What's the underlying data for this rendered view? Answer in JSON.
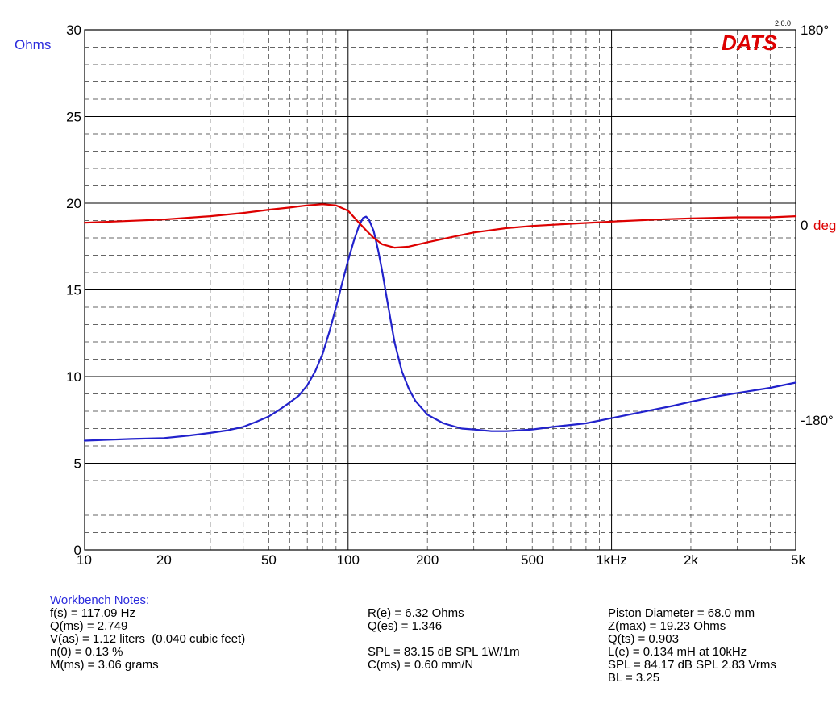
{
  "chart_data": {
    "type": "line",
    "logo": "DATS",
    "version": "2.0.0",
    "x_scale": "log",
    "xlim": [
      10,
      5000
    ],
    "x_tick_labels": [
      {
        "x": 10,
        "label": "10"
      },
      {
        "x": 20,
        "label": "20"
      },
      {
        "x": 50,
        "label": "50"
      },
      {
        "x": 100,
        "label": "100"
      },
      {
        "x": 200,
        "label": "200"
      },
      {
        "x": 500,
        "label": "500"
      },
      {
        "x": 1000,
        "label": "1kHz"
      },
      {
        "x": 2000,
        "label": "2k"
      },
      {
        "x": 5000,
        "label": "5k"
      }
    ],
    "left_axis": {
      "label": "Ohms",
      "ylim": [
        0,
        30
      ],
      "ticks": [
        0,
        5,
        10,
        15,
        20,
        25,
        30
      ]
    },
    "right_axis": {
      "unit_label": "deg",
      "ylim": [
        -300,
        180
      ],
      "ticks": [
        {
          "value": 180,
          "label": "180°"
        },
        {
          "value": 0,
          "label": "0"
        },
        {
          "value": -180,
          "label": "-180°"
        }
      ]
    },
    "grid": true,
    "colors": {
      "impedance": "#2222cc",
      "phase": "#dd0000",
      "logo": "#dd0000",
      "axis_label": "#2b2bdd"
    },
    "series": [
      {
        "key": "impedance",
        "axis": "left",
        "points": [
          [
            10,
            6.3
          ],
          [
            15,
            6.4
          ],
          [
            20,
            6.45
          ],
          [
            25,
            6.6
          ],
          [
            30,
            6.75
          ],
          [
            35,
            6.9
          ],
          [
            40,
            7.1
          ],
          [
            45,
            7.4
          ],
          [
            50,
            7.7
          ],
          [
            55,
            8.1
          ],
          [
            60,
            8.5
          ],
          [
            65,
            8.9
          ],
          [
            70,
            9.5
          ],
          [
            75,
            10.3
          ],
          [
            80,
            11.3
          ],
          [
            85,
            12.6
          ],
          [
            90,
            14.0
          ],
          [
            95,
            15.4
          ],
          [
            100,
            16.7
          ],
          [
            105,
            17.8
          ],
          [
            110,
            18.7
          ],
          [
            114,
            19.15
          ],
          [
            117,
            19.23
          ],
          [
            120,
            19.05
          ],
          [
            125,
            18.4
          ],
          [
            130,
            17.3
          ],
          [
            135,
            16.0
          ],
          [
            140,
            14.6
          ],
          [
            150,
            12.0
          ],
          [
            160,
            10.3
          ],
          [
            170,
            9.3
          ],
          [
            180,
            8.6
          ],
          [
            200,
            7.8
          ],
          [
            230,
            7.3
          ],
          [
            270,
            7.0
          ],
          [
            300,
            6.95
          ],
          [
            350,
            6.85
          ],
          [
            400,
            6.85
          ],
          [
            500,
            6.95
          ],
          [
            600,
            7.1
          ],
          [
            800,
            7.3
          ],
          [
            1000,
            7.6
          ],
          [
            1300,
            7.95
          ],
          [
            1700,
            8.3
          ],
          [
            2000,
            8.55
          ],
          [
            2500,
            8.85
          ],
          [
            3000,
            9.05
          ],
          [
            4000,
            9.35
          ],
          [
            5000,
            9.65
          ]
        ]
      },
      {
        "key": "phase",
        "axis": "right",
        "points": [
          [
            10,
            2
          ],
          [
            20,
            5
          ],
          [
            30,
            8
          ],
          [
            40,
            11
          ],
          [
            50,
            14
          ],
          [
            60,
            16
          ],
          [
            70,
            18
          ],
          [
            80,
            19
          ],
          [
            90,
            18
          ],
          [
            100,
            13
          ],
          [
            110,
            2
          ],
          [
            117,
            -5
          ],
          [
            125,
            -12
          ],
          [
            135,
            -18
          ],
          [
            150,
            -21
          ],
          [
            170,
            -20
          ],
          [
            200,
            -16
          ],
          [
            250,
            -11
          ],
          [
            300,
            -7
          ],
          [
            400,
            -3
          ],
          [
            500,
            -1
          ],
          [
            700,
            1
          ],
          [
            1000,
            3
          ],
          [
            1500,
            5
          ],
          [
            2000,
            6
          ],
          [
            3000,
            7
          ],
          [
            4000,
            7
          ],
          [
            5000,
            8
          ]
        ]
      }
    ]
  },
  "notes": {
    "title": "Workbench Notes:",
    "col1": [
      "f(s) = 117.09 Hz",
      "Q(ms) = 2.749",
      "V(as) = 1.12 liters  (0.040 cubic feet)",
      "n(0) = 0.13 %",
      "M(ms) = 3.06 grams"
    ],
    "col2": [
      "R(e) = 6.32 Ohms",
      "Q(es) = 1.346",
      "",
      "SPL = 83.15 dB SPL 1W/1m",
      "C(ms) = 0.60 mm/N"
    ],
    "col3": [
      "Piston Diameter = 68.0 mm",
      "Z(max) = 19.23 Ohms",
      "Q(ts) = 0.903",
      "L(e) = 0.134 mH at 10kHz",
      "SPL = 84.17 dB SPL 2.83 Vrms",
      "BL = 3.25"
    ]
  }
}
